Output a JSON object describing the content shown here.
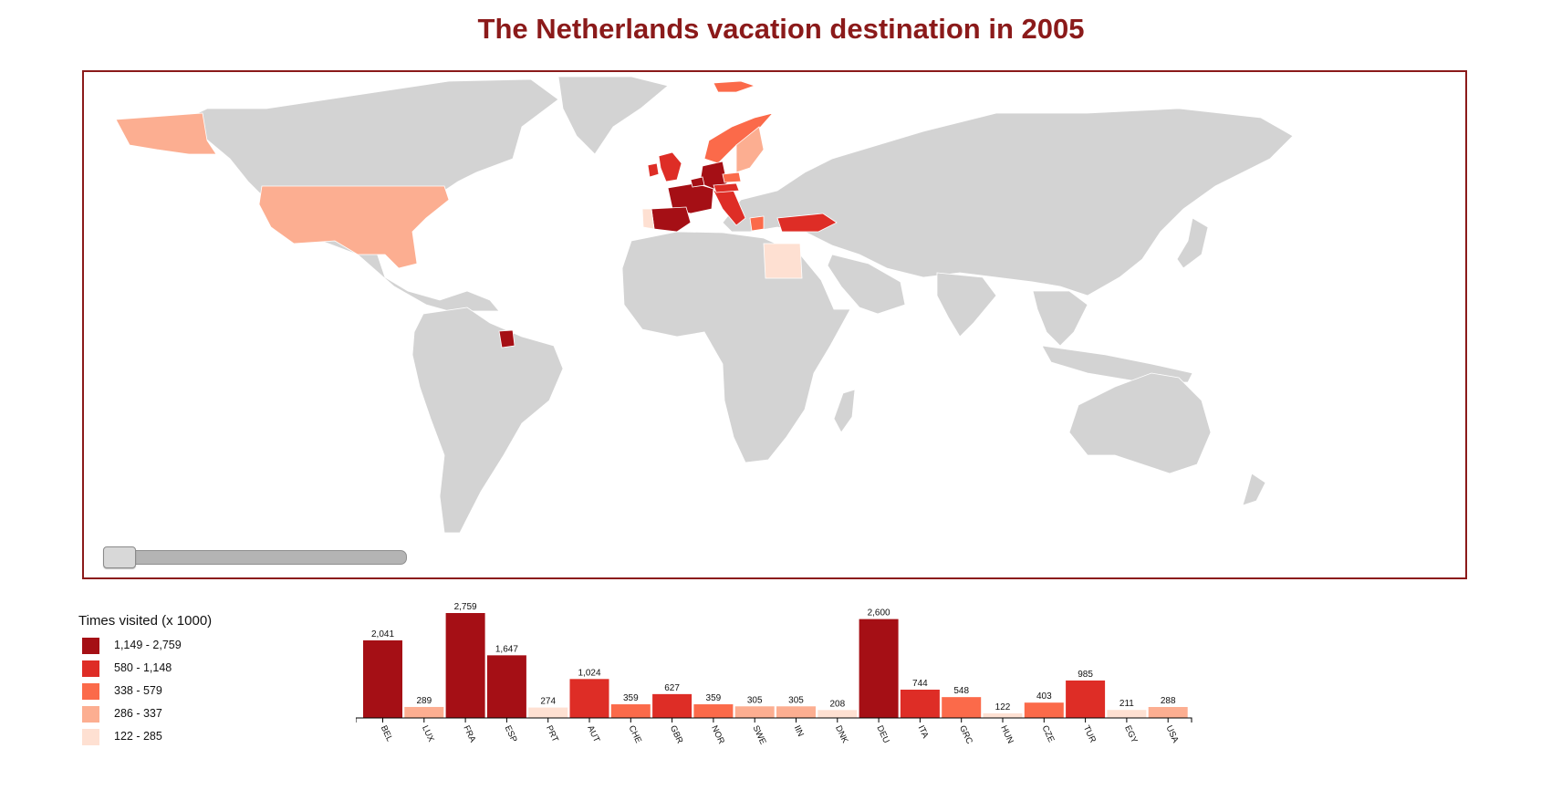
{
  "title": "The Netherlands vacation destination in 2005",
  "map": {
    "base_color": "#d3d3d3",
    "border_color": "#ffffff",
    "frame_color": "#8b1a1a",
    "slider_year": "2005",
    "regions": [
      {
        "id": "North America land",
        "color": "#d3d3d3"
      },
      {
        "id": "South America land",
        "color": "#d3d3d3"
      },
      {
        "id": "Greenland",
        "color": "#d3d3d3"
      },
      {
        "id": "Africa land",
        "color": "#d3d3d3"
      },
      {
        "id": "Eurasia land",
        "color": "#d3d3d3"
      },
      {
        "id": "Arabian Peninsula",
        "color": "#d3d3d3"
      },
      {
        "id": "India",
        "color": "#d3d3d3"
      },
      {
        "id": "Southeast Asia",
        "color": "#d3d3d3"
      },
      {
        "id": "Japan",
        "color": "#d3d3d3"
      },
      {
        "id": "Indonesia",
        "color": "#d3d3d3"
      },
      {
        "id": "Australia",
        "color": "#d3d3d3"
      },
      {
        "id": "New Zealand",
        "color": "#d3d3d3"
      },
      {
        "id": "Madagascar",
        "color": "#d3d3d3"
      },
      {
        "id": "USA",
        "color": "#fcae91"
      },
      {
        "id": "Alaska",
        "color": "#fcae91"
      },
      {
        "id": "Suriname",
        "color": "#a50f15"
      },
      {
        "id": "Egypt",
        "color": "#fee0d2"
      },
      {
        "id": "Turkey",
        "color": "#de2d26"
      },
      {
        "id": "Norway",
        "color": "#fb6a4a"
      },
      {
        "id": "Sweden",
        "color": "#fcae91"
      },
      {
        "id": "United Kingdom",
        "color": "#de2d26"
      },
      {
        "id": "Ireland",
        "color": "#de2d26"
      },
      {
        "id": "France",
        "color": "#a50f15"
      },
      {
        "id": "Spain",
        "color": "#a50f15"
      },
      {
        "id": "Portugal",
        "color": "#fee0d2"
      },
      {
        "id": "Germany",
        "color": "#a50f15"
      },
      {
        "id": "Belgium",
        "color": "#a50f15"
      },
      {
        "id": "Italy",
        "color": "#de2d26"
      },
      {
        "id": "Austria",
        "color": "#de2d26"
      },
      {
        "id": "Greece",
        "color": "#fb6a4a"
      },
      {
        "id": "Czech Republic",
        "color": "#fb6a4a"
      },
      {
        "id": "Svalbard",
        "color": "#fb6a4a"
      }
    ]
  },
  "legend": {
    "title": "Times visited (x 1000)",
    "items": [
      {
        "label": "1,149 - 2,759",
        "color": "#a50f15"
      },
      {
        "label": "580 - 1,148",
        "color": "#de2d26"
      },
      {
        "label": "338 - 579",
        "color": "#fb6a4a"
      },
      {
        "label": "286 - 337",
        "color": "#fcae91"
      },
      {
        "label": "122 - 285",
        "color": "#fee0d2"
      }
    ]
  },
  "chart_data": {
    "type": "bar",
    "title": "",
    "xlabel": "",
    "ylabel": "",
    "ylim": [
      0,
      2759
    ],
    "categories": [
      "BEL",
      "LUX",
      "FRA",
      "ESP",
      "PRT",
      "AUT",
      "CHE",
      "GBR",
      "NOR",
      "SWE",
      "IIN",
      "DNK",
      "DEU",
      "ITA",
      "GRC",
      "HUN",
      "CZE",
      "TUR",
      "EGY",
      "USA"
    ],
    "values": [
      2041,
      289,
      2759,
      1647,
      274,
      1024,
      359,
      627,
      359,
      305,
      305,
      208,
      2600,
      744,
      548,
      122,
      403,
      985,
      211,
      288
    ],
    "value_labels": [
      "2,041",
      "289",
      "2,759",
      "1,647",
      "274",
      "1,024",
      "359",
      "627",
      "359",
      "305",
      "305",
      "208",
      "2,600",
      "744",
      "548",
      "122",
      "403",
      "985",
      "211",
      "288"
    ],
    "colors": [
      "#a50f15",
      "#fcae91",
      "#a50f15",
      "#a50f15",
      "#fee0d2",
      "#de2d26",
      "#fb6a4a",
      "#de2d26",
      "#fb6a4a",
      "#fcae91",
      "#fcae91",
      "#fee0d2",
      "#a50f15",
      "#de2d26",
      "#fb6a4a",
      "#fee0d2",
      "#fb6a4a",
      "#de2d26",
      "#fee0d2",
      "#fcae91"
    ]
  }
}
